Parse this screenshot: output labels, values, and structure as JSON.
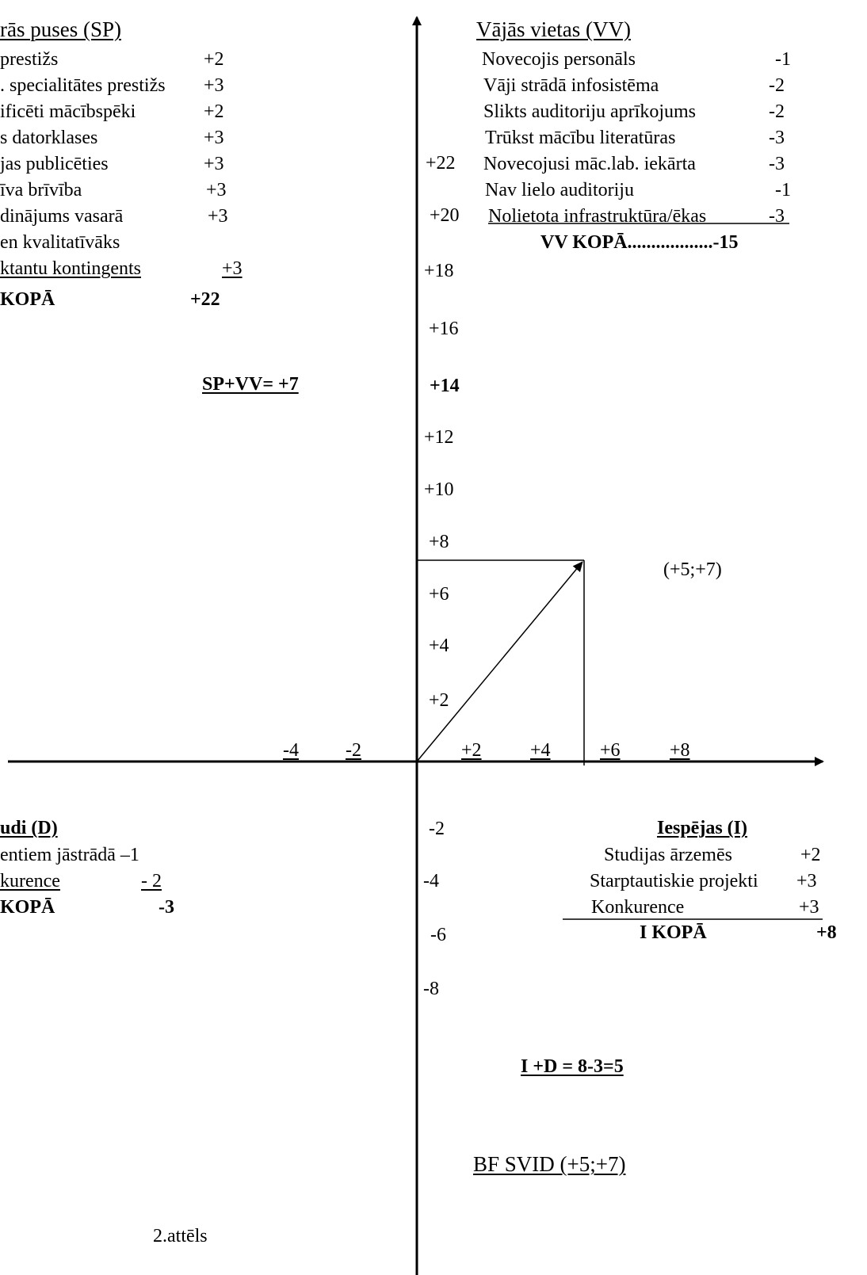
{
  "sp": {
    "title": "rās puses (SP)",
    "items": [
      {
        "label": " prestižs",
        "value": "+2"
      },
      {
        "label": ". specialitātes prestižs",
        "value": "+3"
      },
      {
        "label": "ificēti mācībspēki",
        "value": "+2"
      },
      {
        "label": "s datorklases",
        "value": "+3"
      },
      {
        "label": "jas publicēties",
        "value": "+3"
      },
      {
        "label": "īva brīvība",
        "value": "+3"
      },
      {
        "label": "dinājums vasarā",
        "value": "+3"
      },
      {
        "label": "en kvalitatīvāks",
        "value": ""
      },
      {
        "label": "ktantu kontingents",
        "value": "+3"
      }
    ],
    "total_label": " KOPĀ",
    "total_value": "+22"
  },
  "vv": {
    "title": "Vājās vietas (VV)",
    "items": [
      {
        "label": "Novecojis personāls",
        "value": "-1"
      },
      {
        "label": "Vāji strādā infosistēma",
        "value": "-2"
      },
      {
        "label": "Slikts auditoriju aprīkojums",
        "value": "-2"
      },
      {
        "label": "Trūkst mācību literatūras",
        "value": "-3"
      },
      {
        "label": "Novecojusi māc.lab. iekārta",
        "value": "-3"
      },
      {
        "label": "Nav lielo auditoriju",
        "value": "-1"
      },
      {
        "label": "Nolietota infrastruktūra/ēkas",
        "value": "-3"
      }
    ],
    "total": "VV KOPĀ..................-15"
  },
  "sp_vv": "SP+VV= +7",
  "d": {
    "title": "udi (D)",
    "items": [
      {
        "label": "entiem jāstrādā –1",
        "value": ""
      },
      {
        "label": "kurence",
        "value": "- 2"
      }
    ],
    "total_label": "KOPĀ",
    "total_value": "-3"
  },
  "i": {
    "title": "Iespējas (I)",
    "items": [
      {
        "label": "Studijas ārzemēs",
        "value": "+2"
      },
      {
        "label": "Starptautiskie projekti",
        "value": "+3"
      },
      {
        "label": "Konkurence",
        "value": "+3"
      }
    ],
    "total_label": "I KOPĀ",
    "total_value": "+8"
  },
  "i_d": "I +D = 8-3=5",
  "result": "BF SVID  (+5;+7)",
  "point_label": "(+5;+7)",
  "caption": "2.attēls",
  "y_ticks": [
    "+22",
    "+20",
    "+18",
    "+16",
    "+14",
    "+12",
    "+10",
    "+8",
    "+6",
    "+4",
    "+2",
    "-2",
    "-4",
    "-6",
    "-8"
  ],
  "x_ticks": [
    "-4",
    "-2",
    "+2",
    "+4",
    "+6",
    "+8"
  ],
  "vector": {
    "x": 5,
    "y": 7
  }
}
